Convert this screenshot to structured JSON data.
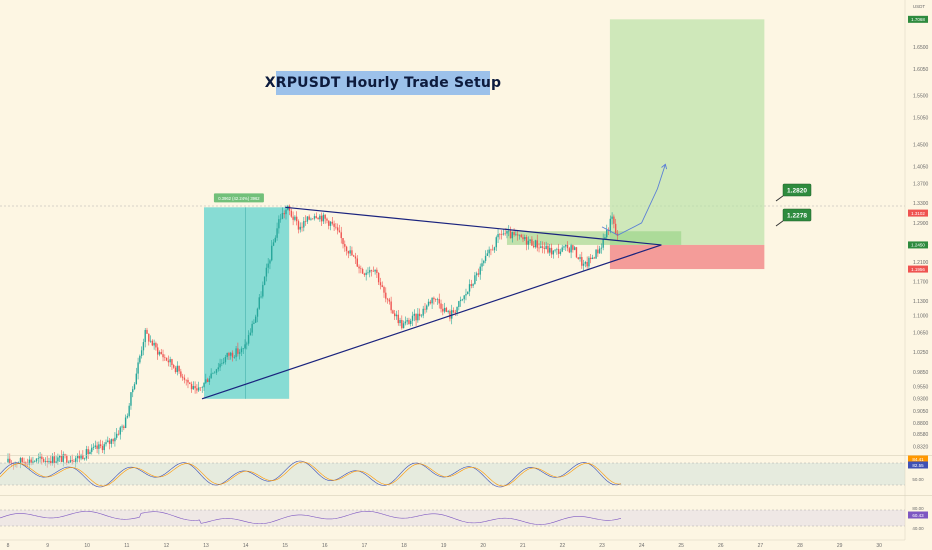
{
  "colors": {
    "background": "#fdf6e3",
    "up_candle": "#26a69a",
    "down_candle": "#ef5350",
    "triangle_line": "#1a237e",
    "profit_zone": "#b7e0a5",
    "loss_zone": "#f28c8c",
    "measure_zone": "#5fd3cf",
    "callout_green": "#2e8b3e"
  },
  "chart_data": {
    "type": "candlestick",
    "title": "XRPUSDT Hourly Trade Setup",
    "currency": "USDT",
    "x_tick_labels": [
      "8",
      "9",
      "10",
      "11",
      "12",
      "13",
      "14",
      "15",
      "16",
      "17",
      "18",
      "19",
      "20",
      "21",
      "22",
      "23",
      "24",
      "25",
      "26",
      "27",
      "28",
      "29",
      "30"
    ],
    "y_tick_labels": [
      "1.7050",
      "1.6500",
      "1.6050",
      "1.5500",
      "1.5050",
      "1.4500",
      "1.4050",
      "1.3700",
      "1.3300",
      "1.2900",
      "1.2450",
      "1.2100",
      "1.1700",
      "1.1300",
      "1.1000",
      "1.0650",
      "1.0250",
      "0.9850",
      "0.9550",
      "0.9300",
      "0.9050",
      "0.8800",
      "0.8580",
      "0.8320"
    ],
    "ylim": [
      0.815,
      1.73
    ],
    "price_markers": [
      {
        "label": "1.7068",
        "value": 1.7068,
        "color": "#2e8b3e"
      },
      {
        "label": "1.3102",
        "value": 1.3102,
        "color": "#ef5350"
      },
      {
        "label": "1.2450",
        "value": 1.245,
        "color": "#2e8b3e"
      },
      {
        "label": "1.1956",
        "value": 1.1956,
        "color": "#ef5350"
      }
    ],
    "callouts": [
      {
        "label": "1.2820",
        "value": 1.282
      },
      {
        "label": "1.2278",
        "value": 1.2278
      }
    ],
    "measure_label": "0.3962 (42.24%) 3962",
    "trade_setup": {
      "entry": 1.245,
      "stop": 1.1956,
      "target": 1.7068
    },
    "triangle": {
      "upper_start": {
        "day": 15.0,
        "price": 1.322
      },
      "apex": {
        "day": 24.5,
        "price": 1.245
      },
      "lower_start": {
        "day": 12.9,
        "price": 0.93
      }
    },
    "projection_path": [
      {
        "day": 23.0,
        "price": 1.282
      },
      {
        "day": 23.4,
        "price": 1.265
      },
      {
        "day": 24.0,
        "price": 1.29
      },
      {
        "day": 24.4,
        "price": 1.36
      },
      {
        "day": 24.6,
        "price": 1.41
      }
    ],
    "price_series": [
      {
        "day": 8.0,
        "price": 0.8
      },
      {
        "day": 9.8,
        "price": 0.81
      },
      {
        "day": 10.6,
        "price": 0.84
      },
      {
        "day": 11.0,
        "price": 0.88
      },
      {
        "day": 11.3,
        "price": 0.99
      },
      {
        "day": 11.5,
        "price": 1.065
      },
      {
        "day": 11.8,
        "price": 1.03
      },
      {
        "day": 12.2,
        "price": 1.0
      },
      {
        "day": 12.5,
        "price": 0.975
      },
      {
        "day": 12.8,
        "price": 0.94
      },
      {
        "day": 13.2,
        "price": 0.985
      },
      {
        "day": 13.6,
        "price": 1.02
      },
      {
        "day": 14.0,
        "price": 1.03
      },
      {
        "day": 14.3,
        "price": 1.1
      },
      {
        "day": 14.6,
        "price": 1.2
      },
      {
        "day": 14.9,
        "price": 1.3
      },
      {
        "day": 15.1,
        "price": 1.32
      },
      {
        "day": 15.4,
        "price": 1.28
      },
      {
        "day": 15.8,
        "price": 1.31
      },
      {
        "day": 16.2,
        "price": 1.29
      },
      {
        "day": 16.6,
        "price": 1.24
      },
      {
        "day": 17.0,
        "price": 1.19
      },
      {
        "day": 17.3,
        "price": 1.2
      },
      {
        "day": 17.6,
        "price": 1.13
      },
      {
        "day": 18.0,
        "price": 1.08
      },
      {
        "day": 18.4,
        "price": 1.1
      },
      {
        "day": 18.8,
        "price": 1.14
      },
      {
        "day": 19.2,
        "price": 1.1
      },
      {
        "day": 19.5,
        "price": 1.13
      },
      {
        "day": 20.0,
        "price": 1.2
      },
      {
        "day": 20.5,
        "price": 1.27
      },
      {
        "day": 20.9,
        "price": 1.26
      },
      {
        "day": 21.3,
        "price": 1.25
      },
      {
        "day": 21.8,
        "price": 1.23
      },
      {
        "day": 22.3,
        "price": 1.24
      },
      {
        "day": 22.6,
        "price": 1.2
      },
      {
        "day": 23.0,
        "price": 1.24
      },
      {
        "day": 23.3,
        "price": 1.3
      },
      {
        "day": 23.4,
        "price": 1.265
      }
    ],
    "rsi_panel": {
      "labels": [
        "84.41",
        "82.55",
        "50.00"
      ],
      "overbought": 70,
      "oversold": 30
    },
    "stoch_panel": {
      "labels": [
        "80.00",
        "60.43",
        "40.00"
      ]
    }
  }
}
